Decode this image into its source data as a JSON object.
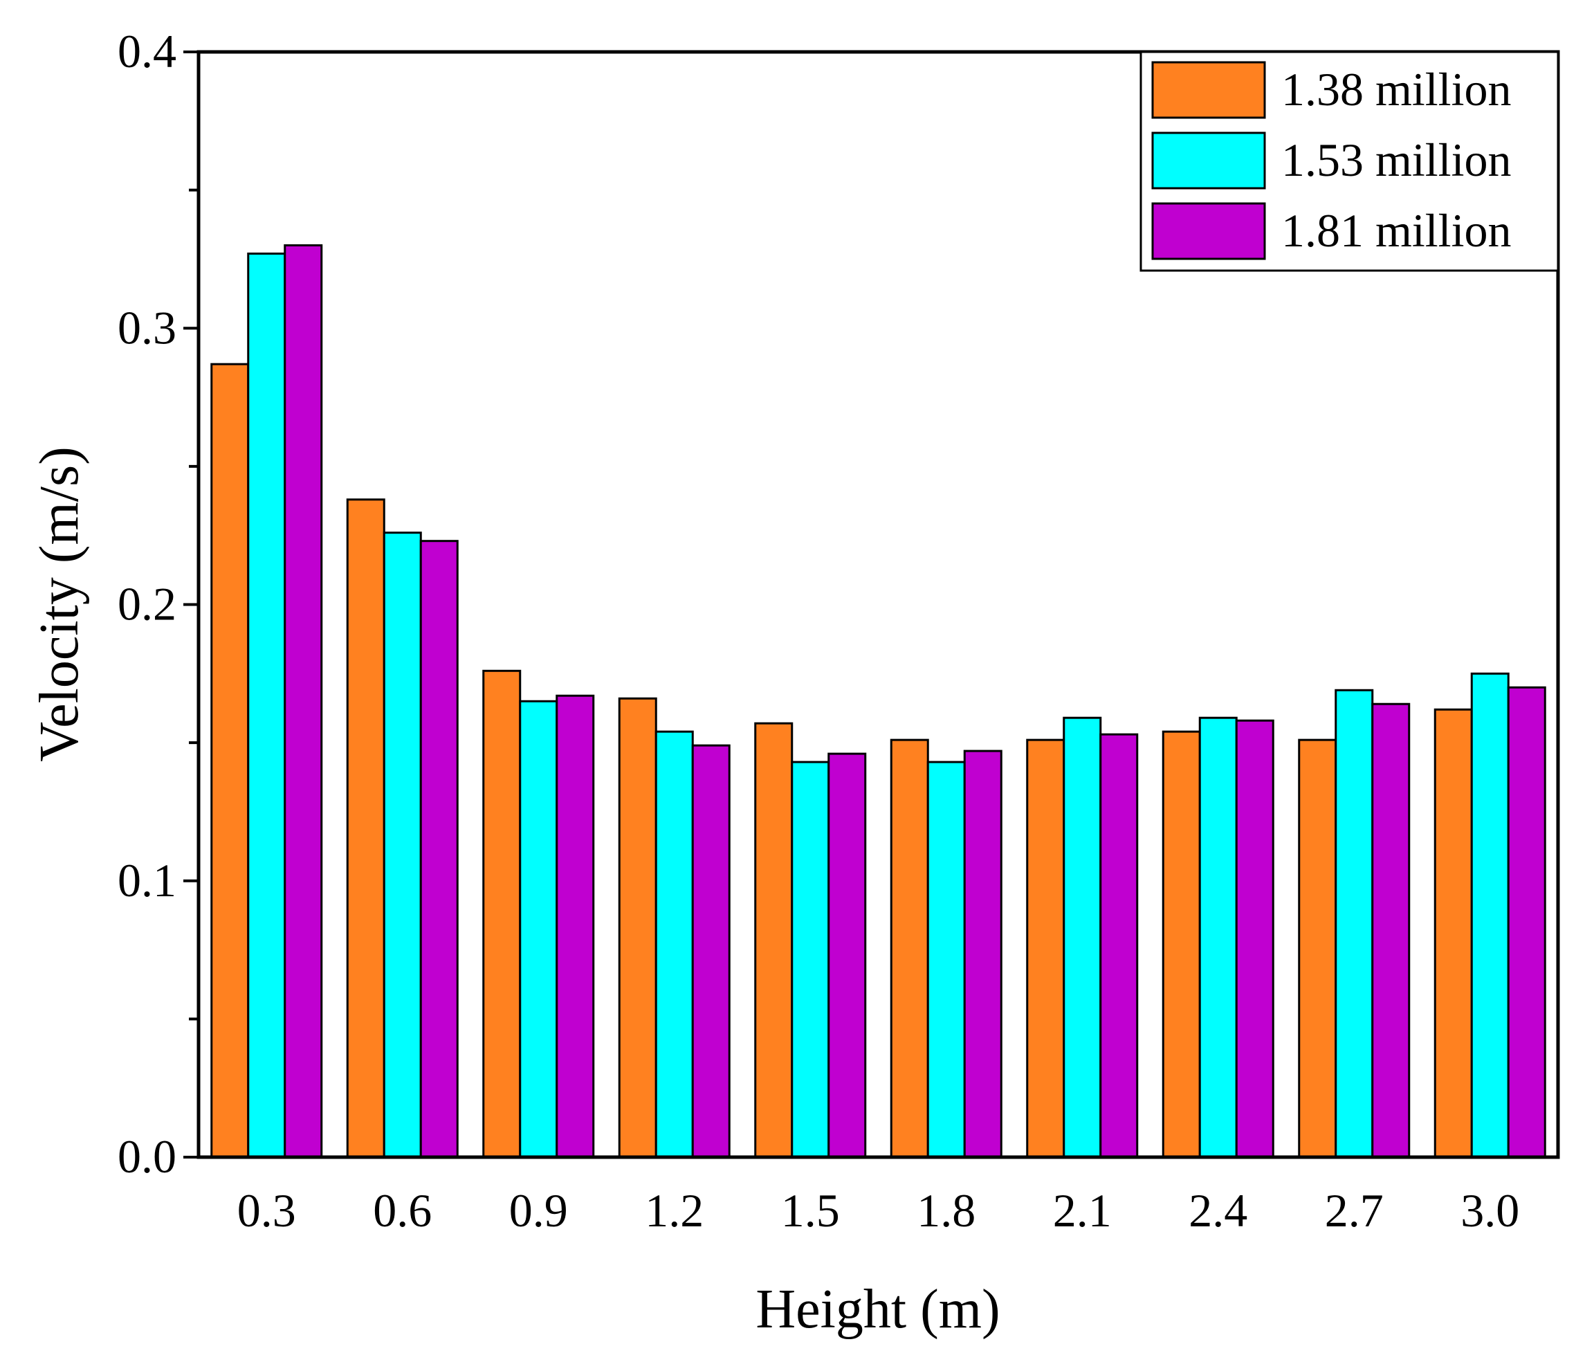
{
  "chart_data": {
    "type": "bar",
    "xlabel": "Height (m)",
    "ylabel": "Velocity (m/s)",
    "ylim": [
      0.0,
      0.4
    ],
    "yticks": [
      "0.0",
      "0.1",
      "0.2",
      "0.3",
      "0.4"
    ],
    "categories": [
      "0.3",
      "0.6",
      "0.9",
      "1.2",
      "1.5",
      "1.8",
      "2.1",
      "2.4",
      "2.7",
      "3.0"
    ],
    "series": [
      {
        "name": "1.38 million",
        "color": "#ff8120",
        "values": [
          0.287,
          0.238,
          0.176,
          0.166,
          0.157,
          0.151,
          0.151,
          0.154,
          0.151,
          0.162
        ]
      },
      {
        "name": "1.53 million",
        "color": "#00ffff",
        "values": [
          0.327,
          0.226,
          0.165,
          0.154,
          0.143,
          0.143,
          0.159,
          0.159,
          0.169,
          0.175
        ]
      },
      {
        "name": "1.81 million",
        "color": "#c000d0",
        "values": [
          0.33,
          0.223,
          0.167,
          0.149,
          0.146,
          0.147,
          0.153,
          0.158,
          0.164,
          0.17
        ]
      }
    ],
    "legend_position": "top-right",
    "grid": false
  }
}
